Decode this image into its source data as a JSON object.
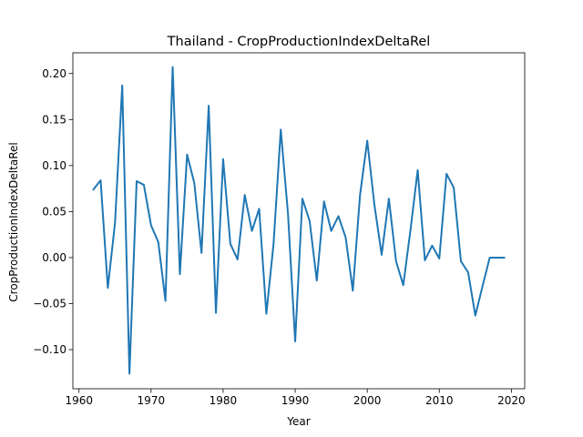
{
  "chart_data": {
    "type": "line",
    "title": "Thailand - CropProductionIndexDeltaRel",
    "xlabel": "Year",
    "ylabel": "CropProductionIndexDeltaRel",
    "xlim": [
      1959.15,
      2021.85
    ],
    "ylim": [
      -0.1425,
      0.2225
    ],
    "x_ticks": [
      1960,
      1970,
      1980,
      1990,
      2000,
      2010,
      2020
    ],
    "x_tick_labels": [
      "1960",
      "1970",
      "1980",
      "1990",
      "2000",
      "2010",
      "2020"
    ],
    "y_ticks": [
      -0.1,
      -0.05,
      0.0,
      0.05,
      0.1,
      0.15,
      0.2
    ],
    "y_tick_labels": [
      "−0.10",
      "−0.05",
      "0.00",
      "0.05",
      "0.10",
      "0.15",
      "0.20"
    ],
    "grid": false,
    "line_color": "#1f77b4",
    "series": [
      {
        "x": [
          1962,
          1963,
          1964,
          1965,
          1966,
          1967,
          1968,
          1969,
          1970,
          1971,
          1972,
          1973,
          1974,
          1975,
          1976,
          1977,
          1978,
          1979,
          1980,
          1981,
          1982,
          1983,
          1984,
          1985,
          1986,
          1987,
          1988,
          1989,
          1990,
          1991,
          1992,
          1993,
          1994,
          1995,
          1996,
          1997,
          1998,
          1999,
          2000,
          2001,
          2002,
          2003,
          2004,
          2005,
          2006,
          2007,
          2008,
          2009,
          2010,
          2011,
          2012,
          2013,
          2014,
          2015,
          2016,
          2017,
          2018,
          2019
        ],
        "values": [
          0.074,
          0.084,
          -0.033,
          0.038,
          0.187,
          -0.126,
          0.083,
          0.079,
          0.035,
          0.017,
          -0.047,
          0.207,
          -0.018,
          0.112,
          0.081,
          0.005,
          0.165,
          -0.06,
          0.107,
          0.015,
          -0.002,
          0.068,
          0.029,
          0.053,
          -0.061,
          0.015,
          0.139,
          0.048,
          -0.091,
          0.064,
          0.04,
          -0.025,
          0.061,
          0.029,
          0.045,
          0.022,
          -0.036,
          0.068,
          0.127,
          0.057,
          0.003,
          0.064,
          -0.004,
          -0.03,
          0.03,
          0.095,
          -0.003,
          0.013,
          -0.001,
          0.091,
          0.076,
          -0.004,
          -0.016,
          -0.063,
          -0.031,
          0.0,
          0.0,
          0.0
        ]
      }
    ]
  }
}
